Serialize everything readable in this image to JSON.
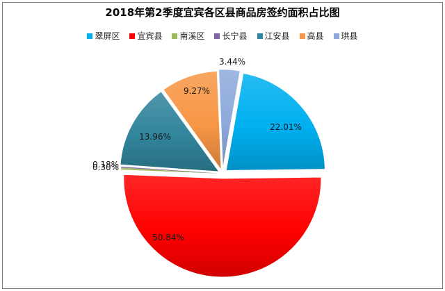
{
  "chart_data": {
    "type": "pie",
    "title": "2018年第2季度宜宾各区县商品房签约面积占比图",
    "categories": [
      "翠屏区",
      "宜宾县",
      "南溪区",
      "长宁县",
      "江安县",
      "高县",
      "珙县"
    ],
    "values": [
      22.01,
      50.84,
      0.3,
      0.18,
      13.96,
      9.27,
      3.44
    ],
    "data_labels": [
      "22.01%",
      "50.84%",
      "0.30%",
      "0.18%",
      "13.96%",
      "9.27%",
      "3.44%"
    ],
    "colors": [
      "#00B0F0",
      "#FF0000",
      "#9BBB59",
      "#8064A2",
      "#31859C",
      "#F79646",
      "#8EAADB"
    ],
    "legend_position": "top"
  }
}
